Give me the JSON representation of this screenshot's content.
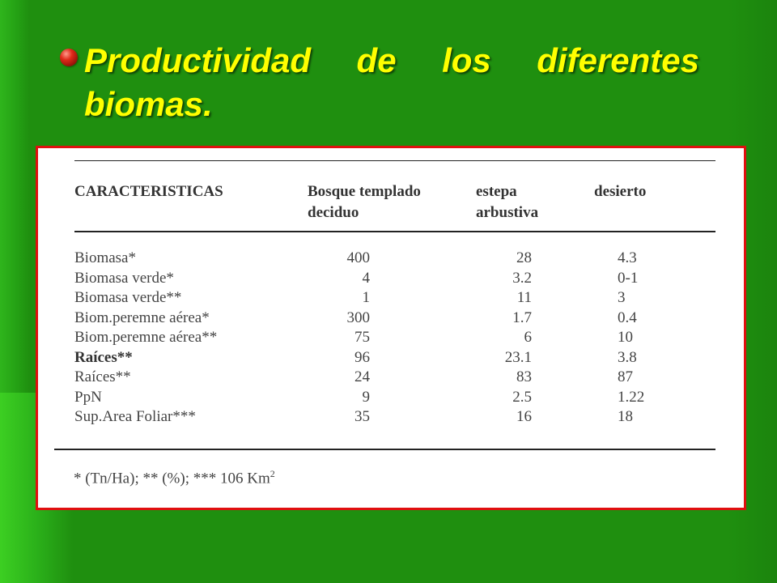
{
  "slide": {
    "title": "Productividad de los diferentes biomas."
  },
  "table": {
    "headers": {
      "caracteristicas": "CARACTERISTICAS",
      "bosque_line1": "Bosque templado",
      "bosque_line2": "deciduo",
      "estepa_line1": "estepa",
      "estepa_line2": "arbustiva",
      "desierto": "desierto"
    },
    "rows": [
      {
        "label": "Biomasa*",
        "bosque": "400",
        "estepa": "28",
        "desierto": "4.3",
        "bold": false
      },
      {
        "label": "Biomasa verde*",
        "bosque": "4",
        "estepa": "3.2",
        "desierto": "0-1",
        "bold": false
      },
      {
        "label": "Biomasa verde**",
        "bosque": "1",
        "estepa": "11",
        "desierto": "3",
        "bold": false
      },
      {
        "label": "Biom.peremne aérea*",
        "bosque": "300",
        "estepa": "1.7",
        "desierto": "0.4",
        "bold": false
      },
      {
        "label": "Biom.peremne aérea**",
        "bosque": "75",
        "estepa": "6",
        "desierto": "10",
        "bold": false
      },
      {
        "label": "Raíces**",
        "bosque": "96",
        "estepa": "23.1",
        "desierto": "3.8",
        "bold": true
      },
      {
        "label": "Raíces**",
        "bosque": "24",
        "estepa": "83",
        "desierto": "87",
        "bold": false
      },
      {
        "label": "PpN",
        "bosque": "9",
        "estepa": "2.5",
        "desierto": "1.22",
        "bold": false
      },
      {
        "label": "Sup.Area Foliar***",
        "bosque": "35",
        "estepa": "16",
        "desierto": "18",
        "bold": false
      }
    ],
    "footnote": {
      "text": "* (Tn/Ha); ** (%); *** 106 Km",
      "sup": "2"
    }
  },
  "colors": {
    "background": "#1f8f0f",
    "title": "#ffff00",
    "panel_border": "#e01010",
    "bullet": "#e02a1a"
  }
}
